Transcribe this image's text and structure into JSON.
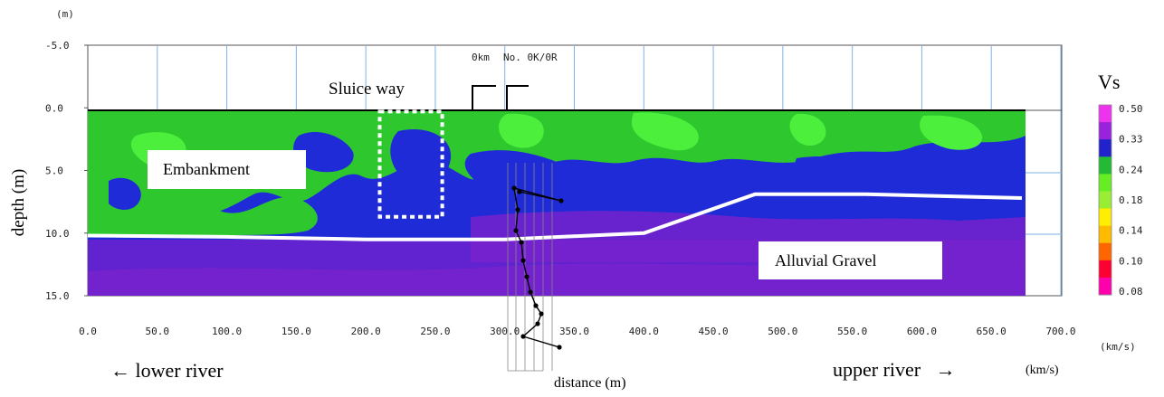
{
  "y_unit_label": "(m)",
  "y_axis_label": "depth (m)",
  "y_ticks": [
    "-5.0",
    "0.0",
    "5.0",
    "10.0",
    "15.0"
  ],
  "x_ticks": [
    "0.0",
    "50.0",
    "100.0",
    "150.0",
    "200.0",
    "250.0",
    "300.0",
    "350.0",
    "400.0",
    "450.0",
    "500.0",
    "550.0",
    "600.0",
    "650.0",
    "700.0"
  ],
  "x_axis_label": "distance (m)",
  "station_labels": {
    "left": "0km",
    "right": "No. 0K/0R"
  },
  "annotations": {
    "sluice_way": "Sluice way",
    "embankment": "Embankment",
    "alluvial_gravel": "Alluvial Gravel"
  },
  "direction_labels": {
    "lower": "← lower river",
    "upper": "upper river   →",
    "unit_bottom": "(km/s)"
  },
  "legend": {
    "title": "Vs",
    "unit": "(km/s)",
    "values": [
      "0.50",
      "0.33",
      "0.24",
      "0.18",
      "0.14",
      "0.10",
      "0.08"
    ],
    "colors": [
      "#ee33ee",
      "#9922dd",
      "#2222cc",
      "#22bb33",
      "#66ee22",
      "#99ee33",
      "#ffee00",
      "#ffbb00",
      "#ff6600",
      "#ff0033",
      "#ff00aa"
    ]
  },
  "profile_colors": {
    "deep": "#7722cc",
    "blue": "#1f2bd6",
    "green": "#2ec82e",
    "lime": "#4cef3c"
  },
  "chart_data": {
    "type": "heatmap",
    "title": "",
    "xlabel": "distance (m)",
    "ylabel": "depth (m)",
    "xlim": [
      0,
      700
    ],
    "ylim": [
      -5,
      15
    ],
    "colorbar": {
      "label": "Vs",
      "unit": "km/s",
      "ticks": [
        0.5,
        0.33,
        0.24,
        0.18,
        0.14,
        0.1,
        0.08
      ]
    },
    "series": [
      {
        "name": "",
        "x": [
          0,
          100,
          200,
          300,
          400,
          480,
          560,
          672
        ],
        "y": [
          10.2,
          10.3,
          10.5,
          10.5,
          10.0,
          6.9,
          6.9,
          7.2
        ]
      }
    ],
    "sluice_box": {
      "x": [
        210,
        255
      ],
      "y": [
        0.3,
        8.7
      ]
    },
    "grid": true
  }
}
